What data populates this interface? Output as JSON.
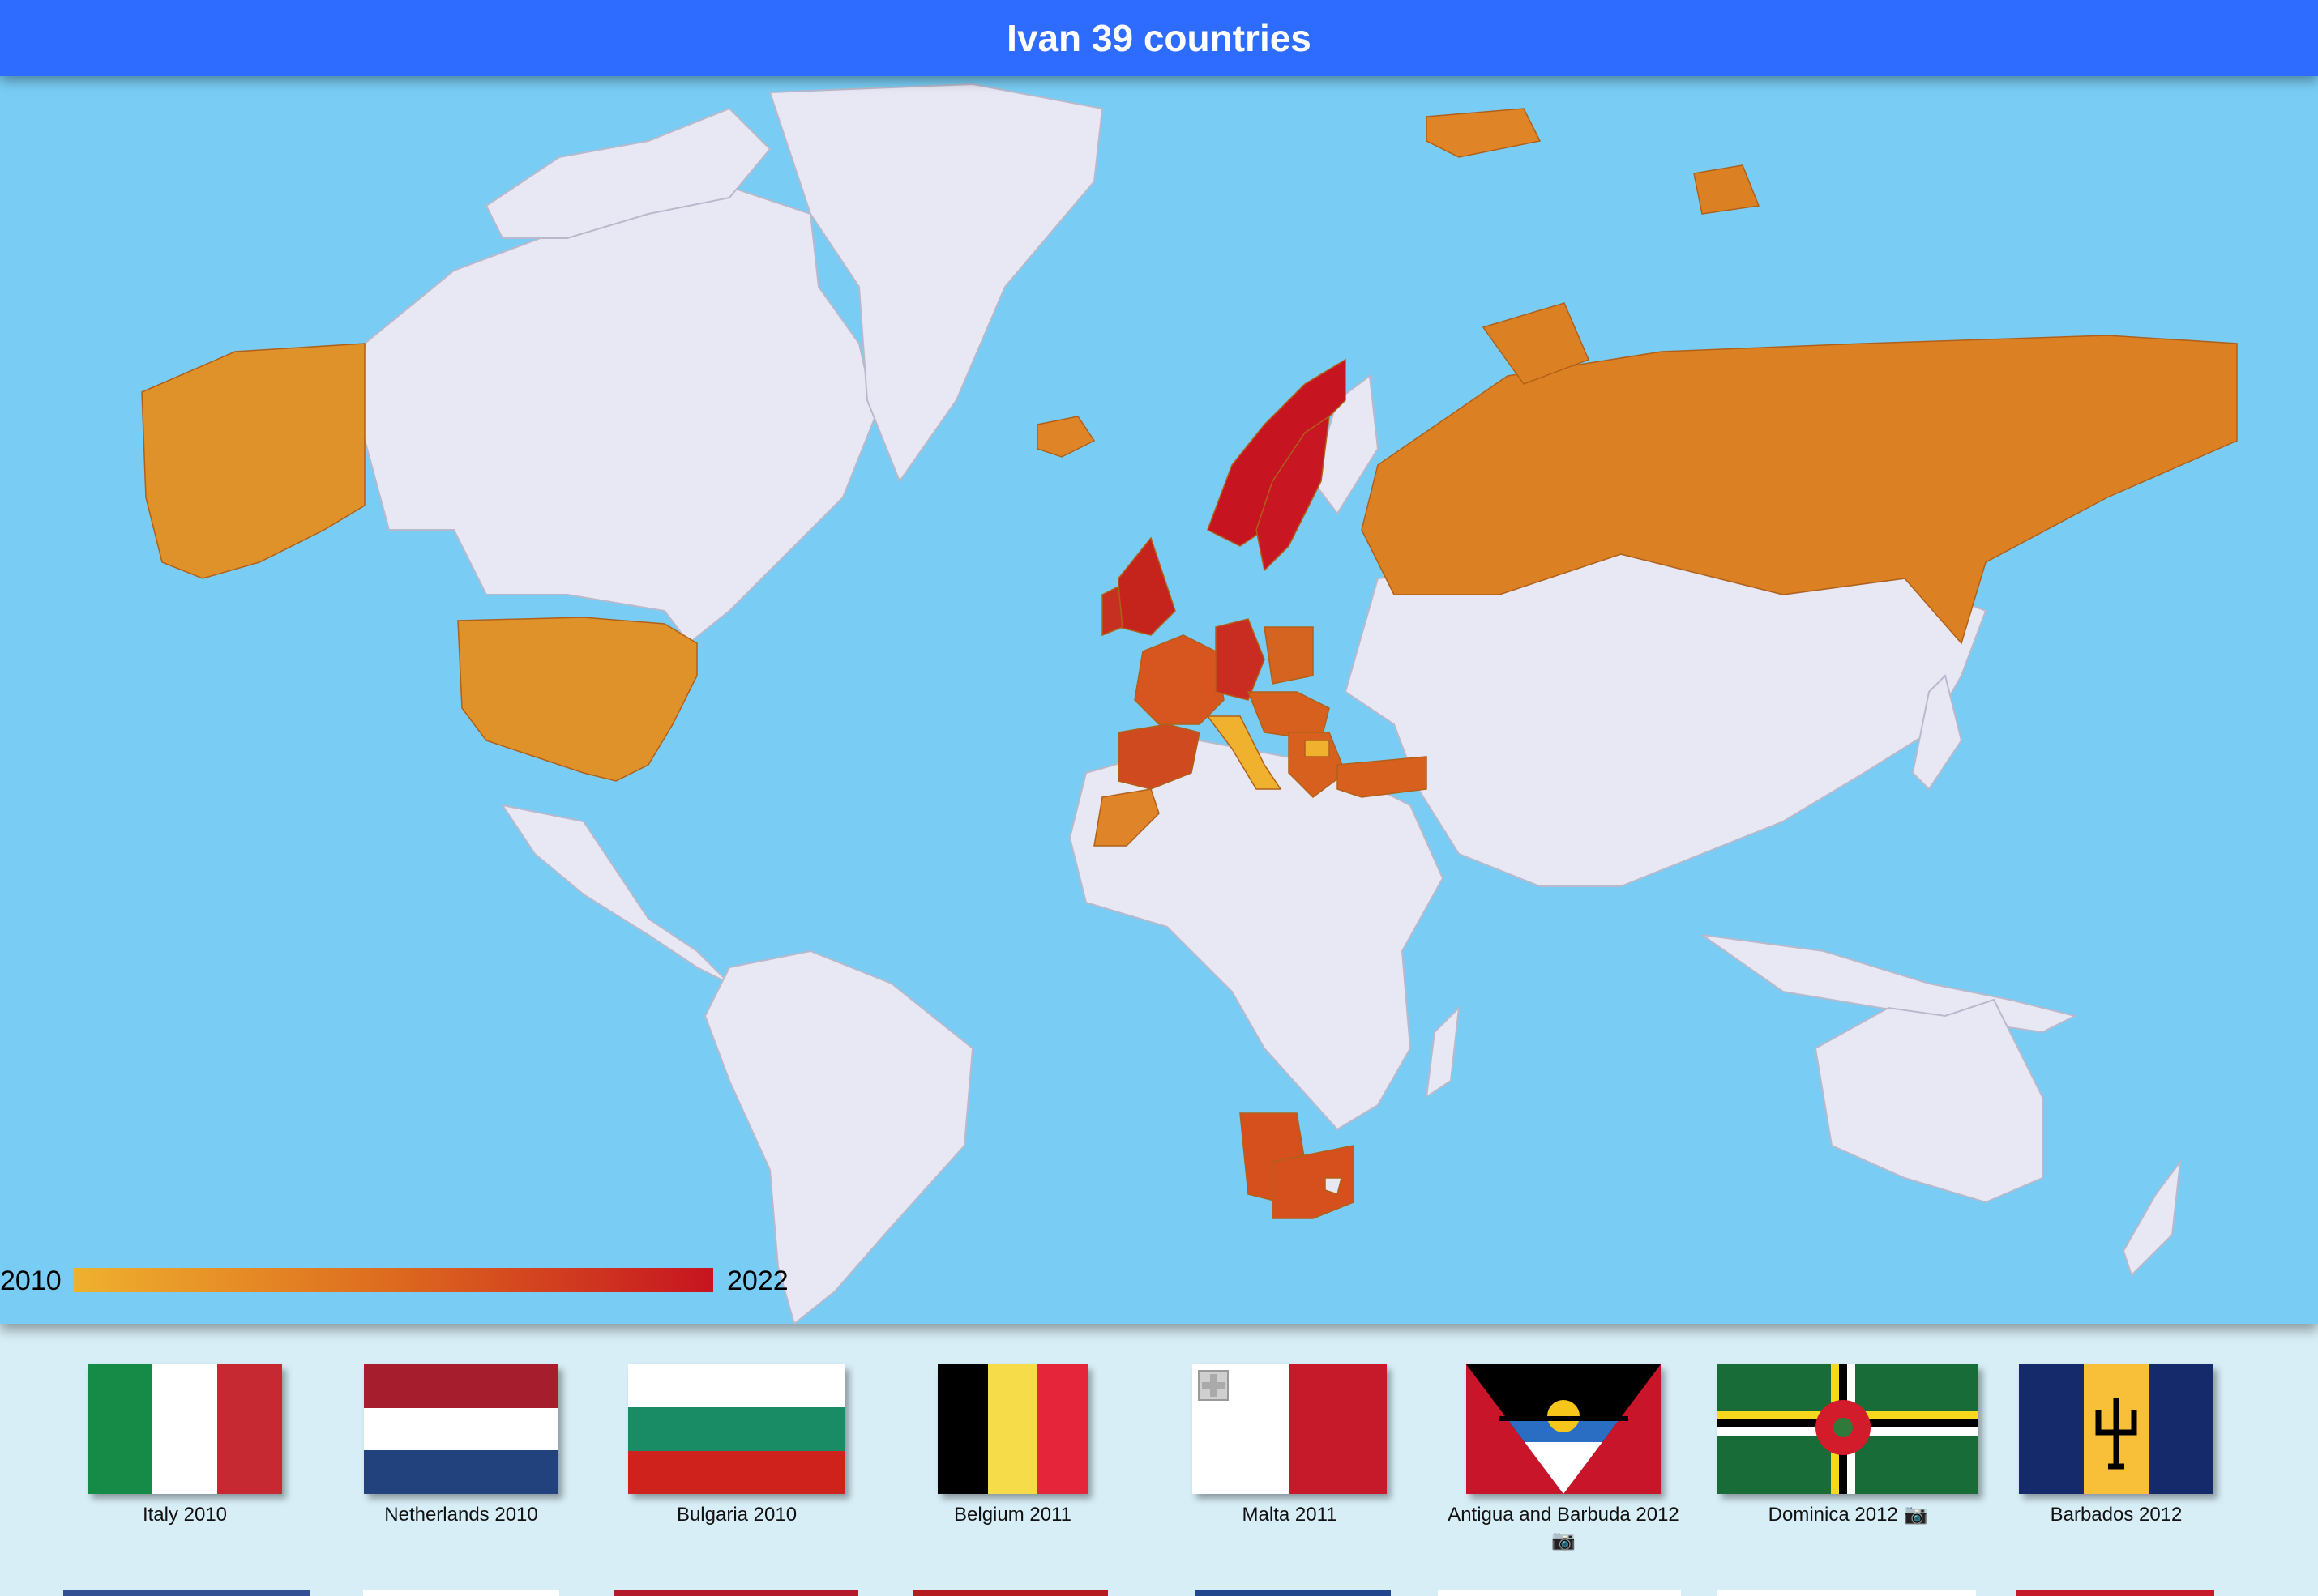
{
  "header": {
    "title": "Ivan 39 countries"
  },
  "map": {
    "legend": {
      "start": "2010",
      "end": "2022",
      "color_start": "#efb12e",
      "color_mid": "#dc6a1f",
      "color_end": "#c61420"
    },
    "colors": {
      "ocean": "#79cdf5",
      "land": "#e8e8f5",
      "border": "#b9b9cc"
    },
    "visited_regions": [
      {
        "region": "Alaska",
        "year": 2011
      },
      {
        "region": "United States",
        "year": 2011
      },
      {
        "region": "Russia",
        "year": 2013
      },
      {
        "region": "Iceland",
        "year": 2013
      },
      {
        "region": "Svalbard",
        "year": 2013
      },
      {
        "region": "Norway",
        "year": 2022
      },
      {
        "region": "Sweden",
        "year": 2021
      },
      {
        "region": "United Kingdom",
        "year": 2020
      },
      {
        "region": "Ireland",
        "year": 2020
      },
      {
        "region": "France",
        "year": 2015
      },
      {
        "region": "Spain",
        "year": 2016
      },
      {
        "region": "Portugal",
        "year": 2016
      },
      {
        "region": "Germany",
        "year": 2019
      },
      {
        "region": "Poland",
        "year": 2015
      },
      {
        "region": "Italy",
        "year": 2010
      },
      {
        "region": "Netherlands",
        "year": 2010
      },
      {
        "region": "Bulgaria",
        "year": 2010
      },
      {
        "region": "Belgium",
        "year": 2011
      },
      {
        "region": "Turkey",
        "year": 2015
      },
      {
        "region": "Greece",
        "year": 2016
      },
      {
        "region": "Morocco",
        "year": 2013
      },
      {
        "region": "Namibia",
        "year": 2016
      },
      {
        "region": "South Africa",
        "year": 2016
      }
    ]
  },
  "flags": [
    {
      "caption": "Italy 2010",
      "flag": "italy",
      "has_camera": false
    },
    {
      "caption": "Netherlands 2010",
      "flag": "netherlands",
      "has_camera": false
    },
    {
      "caption": "Bulgaria 2010",
      "flag": "bulgaria",
      "has_camera": false
    },
    {
      "caption": "Belgium 2011",
      "flag": "belgium",
      "has_camera": false
    },
    {
      "caption": "Malta 2011",
      "flag": "malta",
      "has_camera": false
    },
    {
      "caption": "Antigua and Barbuda 2012",
      "flag": "antigua-and-barbuda",
      "has_camera": true,
      "camera": "📷"
    },
    {
      "caption": "Dominica 2012",
      "flag": "dominica",
      "has_camera": true,
      "camera": "📷"
    },
    {
      "caption": "Barbados 2012",
      "flag": "barbados",
      "has_camera": false
    }
  ]
}
